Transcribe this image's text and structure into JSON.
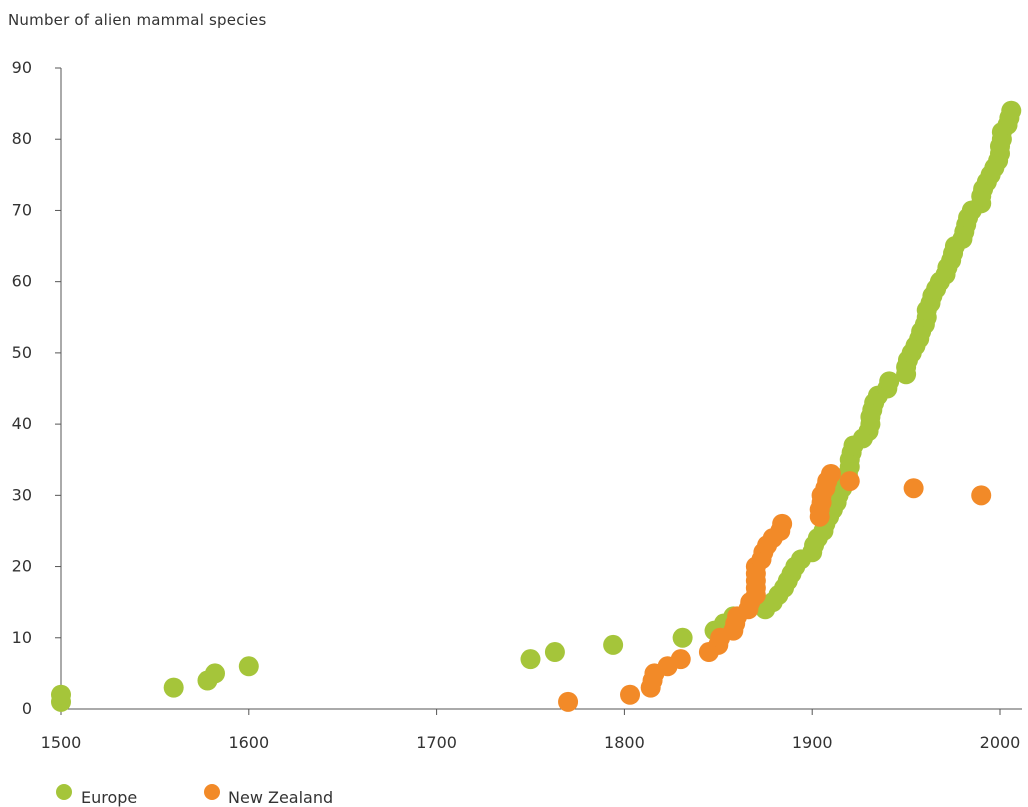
{
  "chart_data": {
    "type": "scatter",
    "title": "",
    "ylabel": "Number of alien mammal species",
    "xlabel": "",
    "xlim": [
      1500,
      2010
    ],
    "ylim": [
      0,
      90
    ],
    "xticks": [
      "1500",
      "1600",
      "1700",
      "1800",
      "1900",
      "2000"
    ],
    "yticks": [
      "0",
      "10",
      "20",
      "30",
      "40",
      "50",
      "60",
      "70",
      "80",
      "90"
    ],
    "grid": false,
    "legend_position": "bottom-left",
    "series": [
      {
        "name": "Europe",
        "color": "#a5c53a",
        "points": [
          [
            1500,
            1
          ],
          [
            1500,
            2
          ],
          [
            1560,
            3
          ],
          [
            1578,
            4
          ],
          [
            1582,
            5
          ],
          [
            1600,
            6
          ],
          [
            1750,
            7
          ],
          [
            1763,
            8
          ],
          [
            1794,
            9
          ],
          [
            1831,
            10
          ],
          [
            1848,
            11
          ],
          [
            1853,
            12
          ],
          [
            1858,
            13
          ],
          [
            1875,
            14
          ],
          [
            1879,
            15
          ],
          [
            1882,
            16
          ],
          [
            1885,
            17
          ],
          [
            1887,
            18
          ],
          [
            1889,
            19
          ],
          [
            1891,
            20
          ],
          [
            1894,
            21
          ],
          [
            1900,
            22
          ],
          [
            1901,
            23
          ],
          [
            1903,
            24
          ],
          [
            1906,
            25
          ],
          [
            1907,
            26
          ],
          [
            1909,
            27
          ],
          [
            1911,
            28
          ],
          [
            1913,
            29
          ],
          [
            1914,
            30
          ],
          [
            1916,
            31
          ],
          [
            1918,
            32
          ],
          [
            1919,
            33
          ],
          [
            1920,
            34
          ],
          [
            1920,
            35
          ],
          [
            1921,
            36
          ],
          [
            1922,
            37
          ],
          [
            1927,
            38
          ],
          [
            1930,
            39
          ],
          [
            1931,
            40
          ],
          [
            1931,
            41
          ],
          [
            1932,
            42
          ],
          [
            1933,
            43
          ],
          [
            1935,
            44
          ],
          [
            1940,
            45
          ],
          [
            1941,
            46
          ],
          [
            1950,
            47
          ],
          [
            1950,
            48
          ],
          [
            1951,
            49
          ],
          [
            1953,
            50
          ],
          [
            1955,
            51
          ],
          [
            1957,
            52
          ],
          [
            1958,
            53
          ],
          [
            1960,
            54
          ],
          [
            1961,
            55
          ],
          [
            1961,
            56
          ],
          [
            1963,
            57
          ],
          [
            1964,
            58
          ],
          [
            1966,
            59
          ],
          [
            1968,
            60
          ],
          [
            1971,
            61
          ],
          [
            1972,
            62
          ],
          [
            1974,
            63
          ],
          [
            1975,
            64
          ],
          [
            1976,
            65
          ],
          [
            1980,
            66
          ],
          [
            1981,
            67
          ],
          [
            1982,
            68
          ],
          [
            1983,
            69
          ],
          [
            1985,
            70
          ],
          [
            1990,
            71
          ],
          [
            1990,
            72
          ],
          [
            1991,
            73
          ],
          [
            1993,
            74
          ],
          [
            1995,
            75
          ],
          [
            1997,
            76
          ],
          [
            1999,
            77
          ],
          [
            2000,
            78
          ],
          [
            2000,
            79
          ],
          [
            2001,
            80
          ],
          [
            2001,
            81
          ],
          [
            2004,
            82
          ],
          [
            2005,
            83
          ],
          [
            2006,
            84
          ]
        ]
      },
      {
        "name": "New Zealand",
        "color": "#f28a28",
        "points": [
          [
            1770,
            1
          ],
          [
            1803,
            2
          ],
          [
            1814,
            3
          ],
          [
            1815,
            4
          ],
          [
            1816,
            5
          ],
          [
            1823,
            6
          ],
          [
            1830,
            7
          ],
          [
            1845,
            8
          ],
          [
            1850,
            9
          ],
          [
            1851,
            10
          ],
          [
            1858,
            11
          ],
          [
            1859,
            12
          ],
          [
            1860,
            13
          ],
          [
            1866,
            14
          ],
          [
            1867,
            15
          ],
          [
            1870,
            16
          ],
          [
            1870,
            17
          ],
          [
            1870,
            18
          ],
          [
            1870,
            19
          ],
          [
            1870,
            20
          ],
          [
            1873,
            21
          ],
          [
            1874,
            22
          ],
          [
            1876,
            23
          ],
          [
            1879,
            24
          ],
          [
            1883,
            25
          ],
          [
            1884,
            26
          ],
          [
            1904,
            27
          ],
          [
            1904,
            28
          ],
          [
            1905,
            29
          ],
          [
            1905,
            30
          ],
          [
            1907,
            31
          ],
          [
            1908,
            32
          ],
          [
            1910,
            33
          ],
          [
            1920,
            32
          ],
          [
            1954,
            31
          ],
          [
            1990,
            30
          ]
        ]
      }
    ]
  }
}
